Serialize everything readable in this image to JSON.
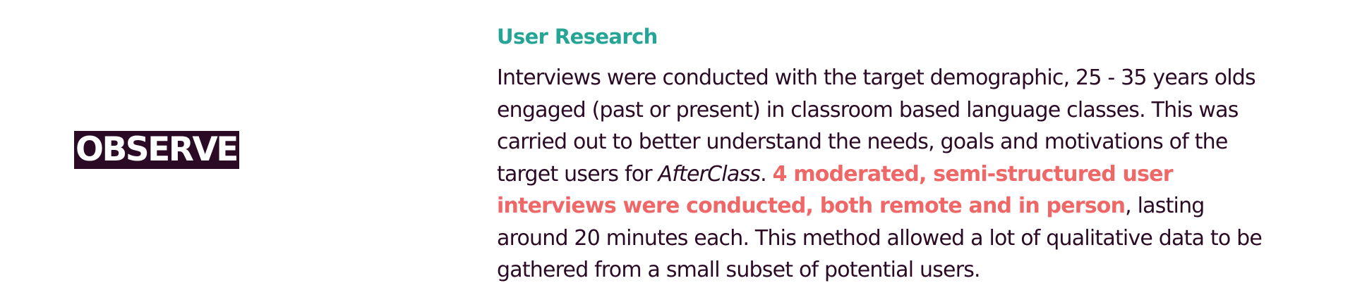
{
  "section": {
    "label": "OBSERVE"
  },
  "research": {
    "heading": "User Research",
    "paragraph": {
      "part1": "Interviews were conducted with the target demographic, 25 - 35 years olds engaged (past or present) in classroom based language classes. This was carried out to better understand the needs, goals and motivations of the target users for ",
      "product_name": "AfterClass",
      "part2": ". ",
      "highlight": "4 moderated, semi-structured user interviews were conducted, both remote and in person",
      "part3": ", lasting around 20 minutes each. This method allowed a lot of qualitative data to be gathered from a small subset of potential users."
    }
  },
  "colors": {
    "label_background": "#2a0a24",
    "heading": "#26a596",
    "body_text": "#2a0a24",
    "highlight": "#ef6767",
    "background": "#ffffff"
  }
}
